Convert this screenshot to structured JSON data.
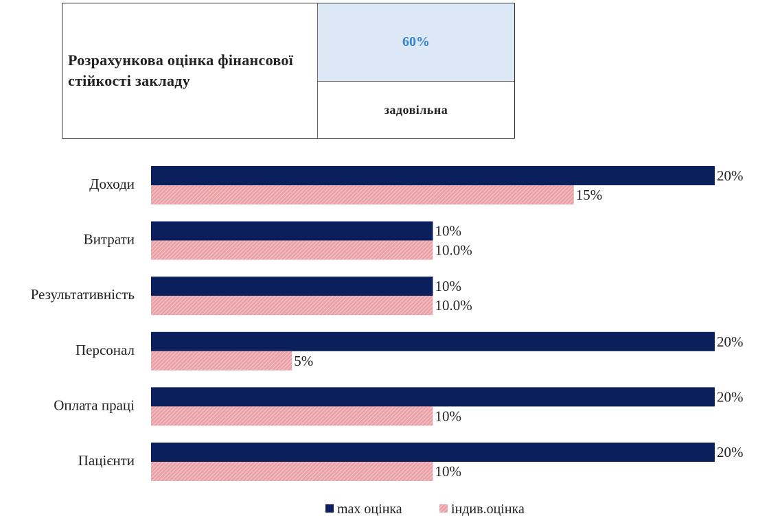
{
  "summary": {
    "label": "Розрахункова оцінка фінансової стійкості закладу",
    "score": "60%",
    "rating": "задовільна"
  },
  "colors": {
    "max": "#0b1f5c",
    "indiv": "#e9a3a8",
    "indiv_hatch": "#f6d3d5"
  },
  "chart_data": {
    "type": "bar",
    "orientation": "horizontal",
    "categories": [
      "Доходи",
      "Витрати",
      "Результативність",
      "Персонал",
      "Оплата праці",
      "Пацієнти"
    ],
    "series": [
      {
        "name": "max оцінка",
        "values": [
          20,
          10,
          10,
          20,
          20,
          20
        ],
        "labels": [
          "20%",
          "10%",
          "10%",
          "20%",
          "20%",
          "20%"
        ]
      },
      {
        "name": "індив.оцінка",
        "values": [
          15,
          10,
          10,
          5,
          10,
          10
        ],
        "labels": [
          "15%",
          "10.0%",
          "10.0%",
          "5%",
          "10%",
          "10%"
        ]
      }
    ],
    "xlim": [
      0,
      20
    ],
    "grid": false,
    "legend_position": "bottom"
  }
}
